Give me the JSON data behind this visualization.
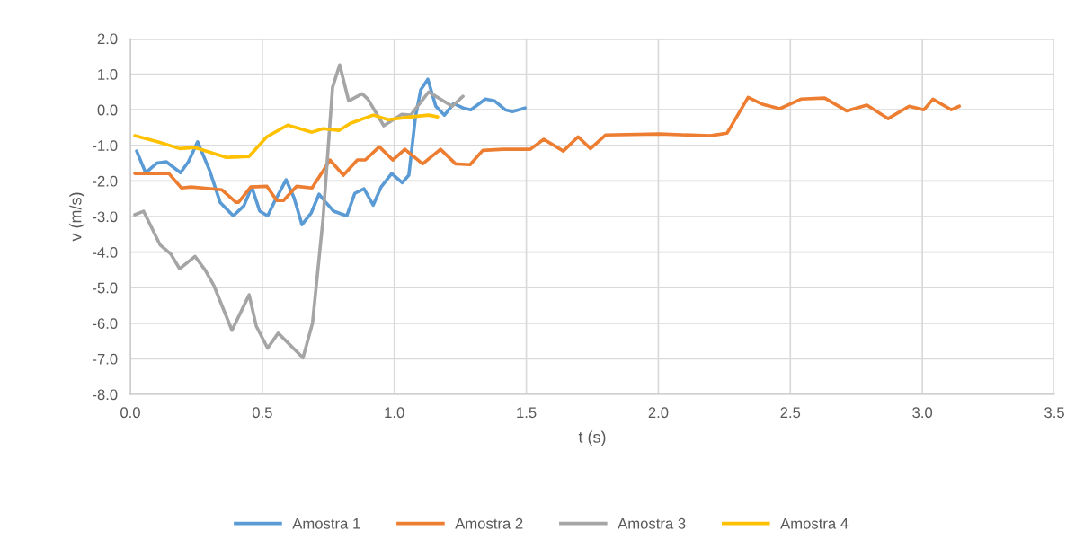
{
  "chart_data": {
    "type": "line",
    "xlabel": "t (s)",
    "ylabel": "v (m/s)",
    "xlim": [
      0,
      3.5
    ],
    "xticks": [
      {
        "value": 0,
        "label": "0.0"
      },
      {
        "value": 0.5,
        "label": "0.5"
      },
      {
        "value": 1,
        "label": "1.0"
      },
      {
        "value": 1.5,
        "label": "1.5"
      },
      {
        "value": 2,
        "label": "2.0"
      },
      {
        "value": 2.5,
        "label": "2.5"
      },
      {
        "value": 3,
        "label": "3.0"
      },
      {
        "value": 3.5,
        "label": "3.5"
      }
    ],
    "ylim": [
      -8,
      2
    ],
    "yticks": [
      {
        "value": -8,
        "label": "-8.0"
      },
      {
        "value": -7,
        "label": "-7.0"
      },
      {
        "value": -6,
        "label": "-6.0"
      },
      {
        "value": -5,
        "label": "-5.0"
      },
      {
        "value": -4,
        "label": "-4.0"
      },
      {
        "value": -3,
        "label": "-3.0"
      },
      {
        "value": -2,
        "label": "-2.0"
      },
      {
        "value": -1,
        "label": "-1.0"
      },
      {
        "value": 0,
        "label": "0.0"
      },
      {
        "value": 1,
        "label": "1.0"
      },
      {
        "value": 2,
        "label": "2.0"
      }
    ],
    "grid": true,
    "legend": "bottom",
    "marker": "none",
    "line_style": "solid",
    "series": [
      {
        "name": "Amostra 1",
        "color": "#5b9bd5",
        "x": [
          0.024,
          0.058,
          0.1,
          0.136,
          0.19,
          0.22,
          0.255,
          0.3,
          0.34,
          0.39,
          0.43,
          0.46,
          0.49,
          0.52,
          0.545,
          0.59,
          0.62,
          0.65,
          0.685,
          0.715,
          0.74,
          0.77,
          0.82,
          0.85,
          0.885,
          0.92,
          0.95,
          0.99,
          1.03,
          1.055,
          1.08,
          1.1,
          1.127,
          1.157,
          1.19,
          1.225,
          1.26,
          1.29,
          1.345,
          1.38,
          1.42,
          1.447,
          1.495
        ],
        "values": [
          -1.16,
          -1.77,
          -1.5,
          -1.46,
          -1.77,
          -1.46,
          -0.9,
          -1.7,
          -2.6,
          -2.98,
          -2.7,
          -2.17,
          -2.85,
          -2.98,
          -2.6,
          -1.97,
          -2.47,
          -3.23,
          -2.9,
          -2.37,
          -2.6,
          -2.85,
          -2.98,
          -2.35,
          -2.22,
          -2.68,
          -2.17,
          -1.79,
          -2.05,
          -1.84,
          -0.2,
          0.56,
          0.86,
          0.1,
          -0.15,
          0.18,
          0.05,
          0,
          0.3,
          0.25,
          0,
          -0.05,
          0.05
        ]
      },
      {
        "name": "Amostra 2",
        "color": "#ed7d31",
        "x": [
          0.017,
          0.146,
          0.194,
          0.23,
          0.347,
          0.4,
          0.41,
          0.456,
          0.517,
          0.555,
          0.58,
          0.63,
          0.688,
          0.73,
          0.756,
          0.807,
          0.86,
          0.89,
          0.943,
          0.994,
          1.04,
          1.107,
          1.175,
          1.232,
          1.287,
          1.335,
          1.413,
          1.515,
          1.566,
          1.64,
          1.696,
          1.743,
          1.8,
          2.005,
          2.196,
          2.26,
          2.34,
          2.397,
          2.46,
          2.54,
          2.63,
          2.713,
          2.79,
          2.87,
          2.95,
          3.006,
          3.04,
          3.11,
          3.14
        ],
        "values": [
          -1.79,
          -1.79,
          -2.2,
          -2.17,
          -2.25,
          -2.6,
          -2.6,
          -2.17,
          -2.15,
          -2.55,
          -2.55,
          -2.15,
          -2.2,
          -1.72,
          -1.41,
          -1.84,
          -1.41,
          -1.41,
          -1.04,
          -1.41,
          -1.11,
          -1.52,
          -1.11,
          -1.52,
          -1.54,
          -1.14,
          -1.11,
          -1.11,
          -0.83,
          -1.16,
          -0.76,
          -1.09,
          -0.71,
          -0.68,
          -0.73,
          -0.66,
          0.35,
          0.15,
          0.03,
          0.3,
          0.33,
          -0.03,
          0.13,
          -0.25,
          0.1,
          0,
          0.3,
          0,
          0.1
        ]
      },
      {
        "name": "Amostra 3",
        "color": "#a5a5a5",
        "x": [
          0.017,
          0.05,
          0.113,
          0.153,
          0.187,
          0.245,
          0.283,
          0.317,
          0.385,
          0.45,
          0.477,
          0.52,
          0.56,
          0.654,
          0.69,
          0.73,
          0.766,
          0.793,
          0.827,
          0.878,
          0.9,
          0.96,
          1.028,
          1.062,
          1.13,
          1.219,
          1.26
        ],
        "values": [
          -2.95,
          -2.85,
          -3.8,
          -4.05,
          -4.47,
          -4.12,
          -4.5,
          -4.95,
          -6.2,
          -5.2,
          -6.08,
          -6.7,
          -6.28,
          -6.97,
          -6.0,
          -3.06,
          0.63,
          1.26,
          0.25,
          0.45,
          0.3,
          -0.45,
          -0.13,
          -0.15,
          0.5,
          0.1,
          0.38
        ]
      },
      {
        "name": "Amostra 4",
        "color": "#ffc000",
        "x": [
          0.017,
          0.109,
          0.187,
          0.245,
          0.364,
          0.45,
          0.517,
          0.596,
          0.688,
          0.73,
          0.79,
          0.834,
          0.92,
          0.977,
          1.062,
          1.13,
          1.164
        ],
        "values": [
          -0.73,
          -0.91,
          -1.09,
          -1.06,
          -1.34,
          -1.31,
          -0.76,
          -0.43,
          -0.63,
          -0.53,
          -0.58,
          -0.38,
          -0.15,
          -0.28,
          -0.2,
          -0.15,
          -0.2
        ]
      }
    ]
  }
}
